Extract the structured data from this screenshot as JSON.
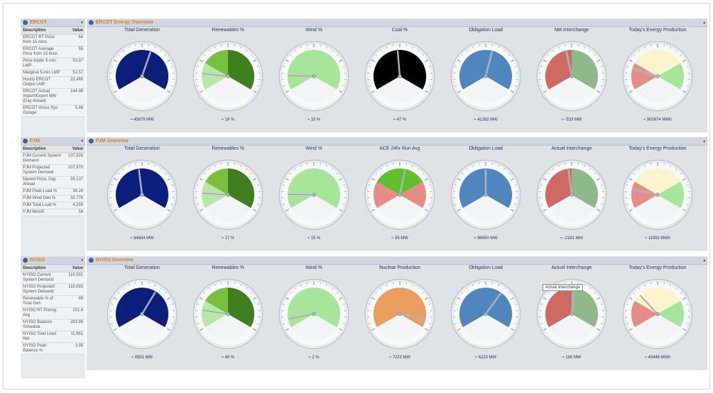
{
  "panels": [
    {
      "side_title": "ERCOT",
      "main_title": "ERCOT Energy Overview",
      "table_headers": [
        "Description",
        "Value"
      ],
      "table_rows": [
        [
          "ERCOT RT Price from 15 mins",
          "64"
        ],
        [
          "ERCOT Average Price from 15 mins",
          "55"
        ],
        [
          "Price Adder 5-min LMP",
          "53.97"
        ],
        [
          "Marginal 5-min LMP",
          "51.57"
        ],
        [
          "Hourly ERCOT Output LMP",
          "22,495"
        ],
        [
          "ERCOT Actual Import/Export MW (Day Ahead)",
          "144.98"
        ],
        [
          "ERCOT Gross Sys Outage",
          "5.88"
        ]
      ],
      "gauges": [
        {
          "title": "Total Generation",
          "value_text": "≈ 45879 MW",
          "frac": 0.58,
          "scheme": "navy"
        },
        {
          "title": "Renewables %",
          "value_text": "≈ 18 %",
          "frac": 0.15,
          "scheme": "green2"
        },
        {
          "title": "Wind %",
          "value_text": "≈ 15 %",
          "frac": 0.13,
          "scheme": "lightgreen"
        },
        {
          "title": "Coal %",
          "value_text": "≈ 47 %",
          "frac": 0.48,
          "scheme": "black"
        },
        {
          "title": "Obligation Load",
          "value_text": "≈ 41282 MW",
          "frac": 0.56,
          "scheme": "blue"
        },
        {
          "title": "Net Interchange",
          "value_text": "≈ -533 MW",
          "frac": 0.45,
          "scheme": "redgreen"
        },
        {
          "title": "Today's Energy Production",
          "value_text": "≈ 902674 MWh",
          "frac": 0.2,
          "scheme": "cream"
        }
      ]
    },
    {
      "side_title": "PJM",
      "main_title": "PJM Overview",
      "table_headers": [
        "Description",
        "Value"
      ],
      "table_rows": [
        [
          "PJM Current System Demand",
          "107,526"
        ],
        [
          "PJM Projected System Demand",
          "107,970"
        ],
        [
          "Market Price, Day Ahead",
          "55.137"
        ],
        [
          "PJM Peak Load %",
          "36.24"
        ],
        [
          "PJM Wind Gen %",
          "32.778"
        ],
        [
          "PJM Total Load %",
          "4,295"
        ],
        [
          "PJM MAGE",
          "54"
        ]
      ],
      "gauges": [
        {
          "title": "Total Generation",
          "value_text": "≈ 94604 MW",
          "frac": 0.47,
          "scheme": "navy"
        },
        {
          "title": "Renewables %",
          "value_text": "≈ 17 %",
          "frac": 0.14,
          "scheme": "green2"
        },
        {
          "title": "Wind %",
          "value_text": "≈ 15 %",
          "frac": 0.13,
          "scheme": "lightgreen"
        },
        {
          "title": "ACE 24hr Run Avg",
          "value_text": "≈ 95 MW",
          "frac": 0.55,
          "scheme": "ace"
        },
        {
          "title": "Obligation Load",
          "value_text": "≈ 96650 MW",
          "frac": 0.5,
          "scheme": "blue"
        },
        {
          "title": "Actual Interchange",
          "value_text": "≈ -2181 MW",
          "frac": 0.47,
          "scheme": "redgreen"
        },
        {
          "title": "Today's Energy Production",
          "value_text": "≈ 11993 MWh",
          "frac": 0.18,
          "scheme": "cream"
        }
      ]
    },
    {
      "side_title": "NYISO",
      "main_title": "NYISO Overview",
      "table_headers": [
        "Description",
        "Value"
      ],
      "table_rows": [
        [
          "NYISO Current System Demand",
          "110,091"
        ],
        [
          "NYISO Projected System Demand",
          "110,093"
        ],
        [
          "Renewable % of Total Gen",
          "86"
        ],
        [
          "NYISO RT Pricing Avg",
          "151.6"
        ],
        [
          "NYISO Balance Schedule",
          "283.99"
        ],
        [
          "NYISO Total Load Net",
          "11,961"
        ],
        [
          "NYISO Peak Balance %",
          "1.95"
        ]
      ],
      "gauges": [
        {
          "title": "Total Generation",
          "value_text": "≈ 8501 MW",
          "frac": 0.63,
          "scheme": "navy"
        },
        {
          "title": "Renewables %",
          "value_text": "≈ 40 %",
          "frac": 0.16,
          "scheme": "green2"
        },
        {
          "title": "Wind %",
          "value_text": "≈ 2 %",
          "frac": 0.08,
          "scheme": "lightgreen"
        },
        {
          "title": "Nuclear Production",
          "value_text": "≈ 7223 MW",
          "frac": 0.92,
          "scheme": "orange"
        },
        {
          "title": "Obligation Load",
          "value_text": "≈ 6223 MW",
          "frac": 0.65,
          "scheme": "blue"
        },
        {
          "title": "Actual Interchange",
          "value_text": "≈ 180 MW",
          "frac": 0.52,
          "scheme": "redgreen"
        },
        {
          "title": "Today's Energy Production",
          "value_text": "≈ 40448 MWh",
          "frac": 0.32,
          "scheme": "cream"
        }
      ],
      "tooltip": "Actual Interchange"
    }
  ],
  "colors": {
    "navy": "#0b1f7a",
    "blue": "#4f86bd",
    "lightgreen": "#a6e59a",
    "darkgreen": "#3f7f1e",
    "midgreen": "#7bbf3f",
    "paleGreen": "#b8e8a8",
    "black": "#000000",
    "orange": "#ea9f61",
    "red": "#cd6b63",
    "sage": "#8fb98a",
    "cream": "#fbf4cd",
    "salmon": "#e58e88",
    "panel_title": "#e07a1f"
  }
}
